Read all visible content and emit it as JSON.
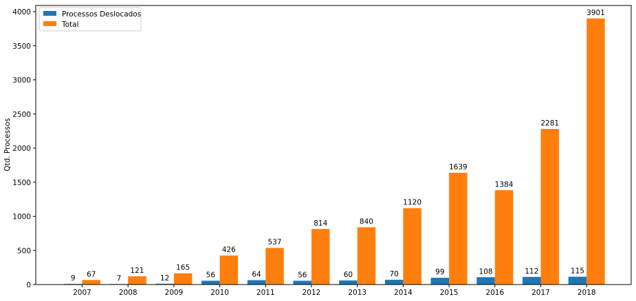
{
  "chart_data": {
    "type": "bar",
    "title": "",
    "xlabel": "",
    "ylabel": "Qtd. Processos",
    "ylim": [
      0,
      4100
    ],
    "yticks": [
      0,
      500,
      1000,
      1500,
      2000,
      2500,
      3000,
      3500,
      4000
    ],
    "grid": false,
    "legend_position": "top-left",
    "categories": [
      "2007",
      "2008",
      "2009",
      "2010",
      "2011",
      "2012",
      "2013",
      "2014",
      "2015",
      "2016",
      "2017",
      "2018"
    ],
    "series": [
      {
        "name": "Processos Deslocados",
        "color": "#1f77b4",
        "values": [
          9,
          7,
          12,
          56,
          64,
          56,
          60,
          70,
          99,
          108,
          112,
          115
        ]
      },
      {
        "name": "Total",
        "color": "#ff7f0e",
        "values": [
          67,
          121,
          165,
          426,
          537,
          814,
          840,
          1120,
          1639,
          1384,
          2281,
          3901
        ]
      }
    ]
  }
}
